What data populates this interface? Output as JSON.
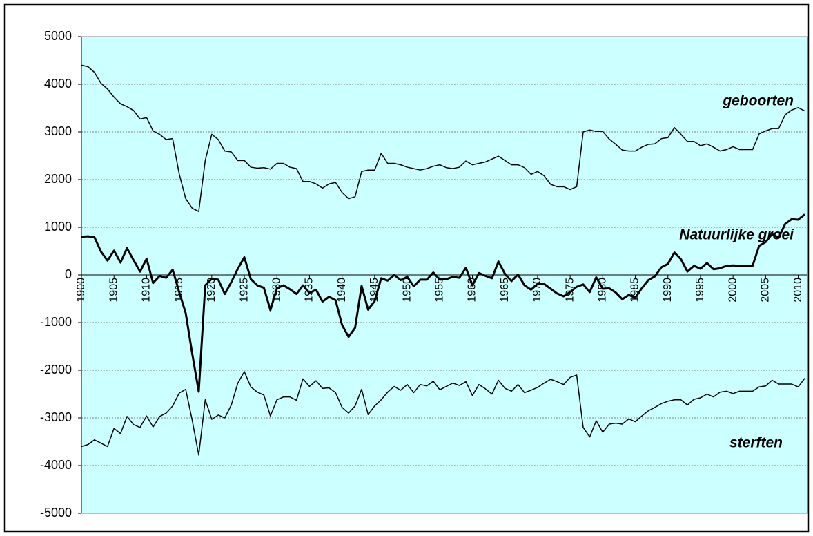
{
  "chart_data": {
    "type": "line",
    "x": [
      1900,
      1901,
      1902,
      1903,
      1904,
      1905,
      1906,
      1907,
      1908,
      1909,
      1910,
      1911,
      1912,
      1913,
      1914,
      1915,
      1916,
      1917,
      1918,
      1919,
      1920,
      1921,
      1922,
      1923,
      1924,
      1925,
      1926,
      1927,
      1928,
      1929,
      1930,
      1931,
      1932,
      1933,
      1934,
      1935,
      1936,
      1937,
      1938,
      1939,
      1940,
      1941,
      1942,
      1943,
      1944,
      1945,
      1946,
      1947,
      1948,
      1949,
      1950,
      1951,
      1952,
      1953,
      1954,
      1955,
      1956,
      1957,
      1958,
      1959,
      1960,
      1961,
      1962,
      1963,
      1964,
      1965,
      1966,
      1967,
      1968,
      1969,
      1970,
      1971,
      1972,
      1973,
      1974,
      1975,
      1976,
      1977,
      1978,
      1979,
      1980,
      1981,
      1982,
      1983,
      1984,
      1985,
      1986,
      1987,
      1988,
      1989,
      1990,
      1991,
      1992,
      1993,
      1994,
      1995,
      1996,
      1997,
      1998,
      1999,
      2000,
      2001,
      2002,
      2003,
      2004,
      2005,
      2006,
      2007,
      2008,
      2009,
      2010,
      2011
    ],
    "series": [
      {
        "name": "geboorten",
        "color": "#000000",
        "width": 1.5,
        "values": [
          4400,
          4370,
          4250,
          4020,
          3900,
          3730,
          3590,
          3530,
          3450,
          3270,
          3300,
          3020,
          2950,
          2840,
          2860,
          2120,
          1600,
          1400,
          1330,
          2400,
          2950,
          2840,
          2600,
          2580,
          2400,
          2400,
          2260,
          2240,
          2250,
          2220,
          2340,
          2340,
          2260,
          2230,
          1960,
          1960,
          1910,
          1820,
          1910,
          1940,
          1730,
          1600,
          1640,
          2170,
          2200,
          2200,
          2550,
          2340,
          2340,
          2310,
          2260,
          2230,
          2200,
          2230,
          2280,
          2310,
          2250,
          2230,
          2260,
          2390,
          2310,
          2340,
          2370,
          2430,
          2490,
          2400,
          2310,
          2310,
          2250,
          2110,
          2170,
          2080,
          1900,
          1850,
          1850,
          1790,
          1850,
          3000,
          3040,
          3010,
          3010,
          2850,
          2740,
          2620,
          2600,
          2600,
          2680,
          2740,
          2750,
          2860,
          2880,
          3090,
          2950,
          2800,
          2800,
          2710,
          2750,
          2680,
          2600,
          2630,
          2690,
          2630,
          2630,
          2630,
          2960,
          3020,
          3070,
          3070,
          3360,
          3460,
          3510,
          3440
        ]
      },
      {
        "name": "Natuurlijke groei",
        "color": "#000000",
        "width": 3,
        "values": [
          800,
          810,
          790,
          490,
          300,
          510,
          260,
          560,
          310,
          70,
          340,
          -170,
          -20,
          -60,
          110,
          -360,
          -800,
          -1650,
          -2450,
          -220,
          -80,
          -100,
          -400,
          -150,
          130,
          370,
          -90,
          -220,
          -270,
          -740,
          -280,
          -220,
          -300,
          -400,
          -220,
          -380,
          -310,
          -560,
          -460,
          -530,
          -1050,
          -1300,
          -1110,
          -230,
          -730,
          -550,
          -70,
          -120,
          0,
          -110,
          -40,
          -240,
          -100,
          -100,
          50,
          -100,
          -90,
          -40,
          -60,
          150,
          -220,
          40,
          -20,
          -70,
          280,
          20,
          -130,
          10,
          -220,
          -310,
          -190,
          -190,
          -290,
          -390,
          -450,
          -360,
          -250,
          -200,
          -360,
          -50,
          -290,
          -280,
          -370,
          -510,
          -420,
          -480,
          -280,
          -110,
          -30,
          160,
          230,
          470,
          330,
          70,
          190,
          130,
          250,
          120,
          140,
          190,
          200,
          190,
          190,
          190,
          610,
          690,
          860,
          780,
          1070,
          1170,
          1160,
          1270
        ]
      },
      {
        "name": "sterften",
        "color": "#000000",
        "width": 1.5,
        "values": [
          -3600,
          -3560,
          -3460,
          -3530,
          -3600,
          -3220,
          -3330,
          -2970,
          -3140,
          -3200,
          -2960,
          -3190,
          -2970,
          -2900,
          -2750,
          -2480,
          -2400,
          -3050,
          -3780,
          -2620,
          -3030,
          -2940,
          -3000,
          -2730,
          -2270,
          -2030,
          -2350,
          -2460,
          -2520,
          -2960,
          -2620,
          -2560,
          -2560,
          -2630,
          -2180,
          -2340,
          -2220,
          -2380,
          -2370,
          -2470,
          -2780,
          -2900,
          -2750,
          -2400,
          -2930,
          -2750,
          -2620,
          -2460,
          -2340,
          -2420,
          -2300,
          -2470,
          -2300,
          -2330,
          -2230,
          -2410,
          -2340,
          -2270,
          -2320,
          -2240,
          -2530,
          -2300,
          -2390,
          -2500,
          -2210,
          -2380,
          -2440,
          -2300,
          -2470,
          -2420,
          -2360,
          -2270,
          -2190,
          -2240,
          -2300,
          -2150,
          -2100,
          -3200,
          -3400,
          -3060,
          -3300,
          -3130,
          -3110,
          -3130,
          -3020,
          -3080,
          -2960,
          -2850,
          -2780,
          -2700,
          -2650,
          -2620,
          -2620,
          -2730,
          -2610,
          -2580,
          -2500,
          -2560,
          -2460,
          -2440,
          -2490,
          -2440,
          -2440,
          -2440,
          -2350,
          -2330,
          -2210,
          -2290,
          -2290,
          -2290,
          -2350,
          -2170
        ]
      }
    ],
    "xlim": [
      1900,
      2011
    ],
    "xticks": [
      1900,
      1905,
      1910,
      1915,
      1920,
      1925,
      1930,
      1935,
      1940,
      1945,
      1950,
      1955,
      1960,
      1965,
      1970,
      1975,
      1980,
      1985,
      1990,
      1995,
      2000,
      2005,
      2010
    ],
    "ylim": [
      -5000,
      5000
    ],
    "yticks": [
      -5000,
      -4000,
      -3000,
      -2000,
      -1000,
      0,
      1000,
      2000,
      3000,
      4000,
      5000
    ],
    "grid": true,
    "background": "#ccffff"
  }
}
